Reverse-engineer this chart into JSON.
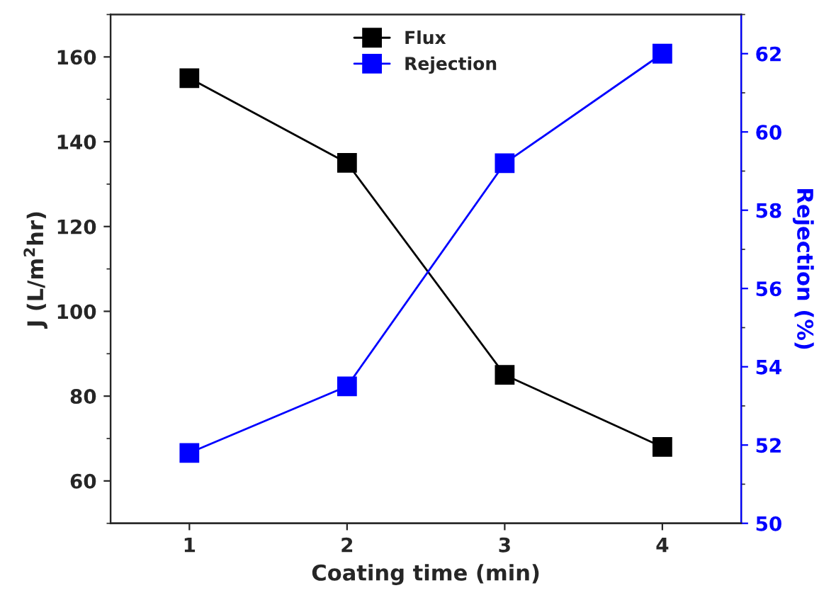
{
  "chart_data": {
    "type": "line",
    "xlabel": "Coating time (min)",
    "ylabel": "J (L/m$^{2}$hr)",
    "y2label": "Rejection (%)",
    "x": [
      1,
      2,
      3,
      4
    ],
    "series": [
      {
        "name": "Flux",
        "color": "#000000",
        "values": [
          155,
          135,
          85,
          68
        ]
      },
      {
        "name": "Rejection",
        "color": "#0000ff",
        "values": [
          51.8,
          53.5,
          59.2,
          62.0
        ],
        "axis": "y2"
      }
    ],
    "xlim": [
      0.5,
      4.5
    ],
    "xticks": [
      1,
      2,
      3,
      4
    ],
    "ylim": [
      50,
      170
    ],
    "yticks": [
      60,
      80,
      100,
      120,
      140,
      160
    ],
    "y2lim": [
      50,
      63
    ],
    "y2ticks": [
      50,
      52,
      54,
      56,
      58,
      60,
      62
    ],
    "marker": "square",
    "line_style": "solid",
    "legend": "top",
    "grid": false
  }
}
